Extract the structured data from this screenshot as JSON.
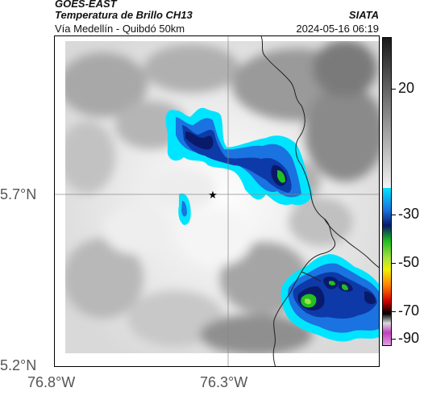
{
  "header": {
    "satellite": "GOES-EAST",
    "product": "Temperatura de Brillo CH13",
    "organization": "SIATA",
    "route": "Vía Medellín - Quibdó 50km",
    "datetime": "2024-05-16 06:19"
  },
  "axes": {
    "lat_labels": [
      "5.7°N",
      "5.2°N"
    ],
    "lon_labels": [
      "76.8°W",
      "76.3°W"
    ]
  },
  "colorbar": {
    "tick_labels": [
      "20",
      "-30",
      "-50",
      "-70",
      "-90"
    ],
    "colors": {
      "gray_light": "#f2f2f2",
      "gray_dark": "#1a1a1a",
      "cyan": "#00e5ff",
      "blue": "#1040c0",
      "navy": "#0a1a6a",
      "green": "#20c020",
      "yellow": "#f0f000",
      "orange": "#ff8000",
      "red": "#d00000",
      "black": "#000000",
      "magenta": "#c040c0"
    }
  },
  "map": {
    "marker_icon": "star-icon",
    "gridlines": true
  }
}
